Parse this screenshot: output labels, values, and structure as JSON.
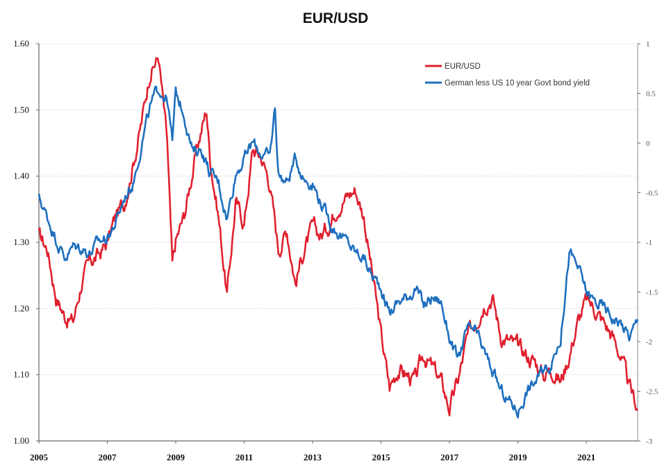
{
  "chart_data": {
    "type": "line",
    "title": "EUR/USD",
    "xlabel": "",
    "ylabel": "",
    "y2label": "",
    "xlim": [
      2005,
      2022.5
    ],
    "ylim": [
      1.0,
      1.6
    ],
    "y2lim": [
      -3,
      1
    ],
    "x_tick_labels": [
      "2005",
      "2007",
      "2009",
      "2011",
      "2013",
      "2015",
      "2017",
      "2019",
      "2021"
    ],
    "y_tick_labels": [
      "1.00",
      "1.10",
      "1.20",
      "1.30",
      "1.40",
      "1.50",
      "1.60"
    ],
    "y2_tick_labels": [
      "-3",
      "-2.5",
      "-2",
      "-1.5",
      "-1",
      "-0.5",
      "0",
      "0.5",
      "1"
    ],
    "grid": true,
    "legend_position": "top-right",
    "series": [
      {
        "name": "EUR/USD",
        "axis": "left",
        "color": "#e0202f",
        "x": [
          2005.0,
          2005.25,
          2005.5,
          2005.75,
          2006.0,
          2006.25,
          2006.5,
          2006.75,
          2007.0,
          2007.25,
          2007.5,
          2007.75,
          2008.0,
          2008.25,
          2008.5,
          2008.75,
          2008.9,
          2009.0,
          2009.25,
          2009.5,
          2009.75,
          2009.9,
          2010.0,
          2010.25,
          2010.5,
          2010.75,
          2011.0,
          2011.25,
          2011.5,
          2011.75,
          2012.0,
          2012.25,
          2012.5,
          2012.75,
          2013.0,
          2013.25,
          2013.5,
          2013.75,
          2014.0,
          2014.25,
          2014.5,
          2014.75,
          2015.0,
          2015.25,
          2015.5,
          2015.75,
          2016.0,
          2016.25,
          2016.5,
          2016.75,
          2017.0,
          2017.25,
          2017.5,
          2017.75,
          2018.0,
          2018.25,
          2018.5,
          2018.75,
          2019.0,
          2019.25,
          2019.5,
          2019.75,
          2020.0,
          2020.25,
          2020.5,
          2020.75,
          2021.0,
          2021.25,
          2021.5,
          2021.75,
          2022.0,
          2022.25,
          2022.5
        ],
        "values": [
          1.31,
          1.29,
          1.22,
          1.19,
          1.18,
          1.24,
          1.27,
          1.28,
          1.3,
          1.34,
          1.36,
          1.42,
          1.48,
          1.56,
          1.58,
          1.45,
          1.26,
          1.3,
          1.34,
          1.41,
          1.47,
          1.5,
          1.43,
          1.34,
          1.22,
          1.36,
          1.33,
          1.44,
          1.43,
          1.39,
          1.29,
          1.32,
          1.24,
          1.29,
          1.32,
          1.31,
          1.33,
          1.36,
          1.37,
          1.38,
          1.34,
          1.25,
          1.16,
          1.08,
          1.11,
          1.1,
          1.09,
          1.13,
          1.11,
          1.09,
          1.05,
          1.09,
          1.15,
          1.18,
          1.21,
          1.22,
          1.16,
          1.15,
          1.14,
          1.13,
          1.12,
          1.1,
          1.11,
          1.09,
          1.13,
          1.18,
          1.21,
          1.2,
          1.18,
          1.16,
          1.13,
          1.08,
          1.05
        ]
      },
      {
        "name": "German less US 10 year Govt bond yield",
        "axis": "right",
        "color": "#1f6fbe",
        "x": [
          2005.0,
          2005.25,
          2005.5,
          2005.75,
          2006.0,
          2006.25,
          2006.5,
          2006.75,
          2007.0,
          2007.25,
          2007.5,
          2007.75,
          2008.0,
          2008.25,
          2008.5,
          2008.75,
          2008.9,
          2009.0,
          2009.25,
          2009.5,
          2009.75,
          2010.0,
          2010.25,
          2010.5,
          2010.75,
          2011.0,
          2011.25,
          2011.5,
          2011.75,
          2011.9,
          2012.0,
          2012.25,
          2012.5,
          2012.75,
          2013.0,
          2013.25,
          2013.5,
          2013.75,
          2014.0,
          2014.25,
          2014.5,
          2014.75,
          2015.0,
          2015.25,
          2015.5,
          2015.75,
          2016.0,
          2016.25,
          2016.5,
          2016.75,
          2017.0,
          2017.25,
          2017.5,
          2017.75,
          2018.0,
          2018.25,
          2018.5,
          2018.75,
          2019.0,
          2019.25,
          2019.5,
          2019.75,
          2020.0,
          2020.25,
          2020.5,
          2020.75,
          2021.0,
          2021.25,
          2021.5,
          2021.75,
          2022.0,
          2022.25,
          2022.5
        ],
        "values": [
          -0.55,
          -0.75,
          -0.95,
          -1.15,
          -1.05,
          -1.05,
          -1.1,
          -1.0,
          -0.95,
          -0.8,
          -0.55,
          -0.4,
          0.0,
          0.35,
          0.55,
          0.45,
          0.0,
          0.5,
          0.3,
          -0.1,
          -0.05,
          -0.3,
          -0.4,
          -0.75,
          -0.3,
          -0.15,
          0.0,
          -0.1,
          -0.15,
          0.35,
          -0.3,
          -0.4,
          -0.15,
          -0.35,
          -0.4,
          -0.6,
          -0.8,
          -0.9,
          -1.0,
          -1.1,
          -1.15,
          -1.35,
          -1.45,
          -1.7,
          -1.6,
          -1.55,
          -1.45,
          -1.65,
          -1.55,
          -1.6,
          -1.95,
          -2.2,
          -1.9,
          -1.9,
          -2.1,
          -2.3,
          -2.5,
          -2.6,
          -2.7,
          -2.5,
          -2.4,
          -2.3,
          -2.2,
          -1.95,
          -1.1,
          -1.25,
          -1.5,
          -1.6,
          -1.65,
          -1.75,
          -1.8,
          -1.95,
          -1.8
        ]
      }
    ]
  }
}
